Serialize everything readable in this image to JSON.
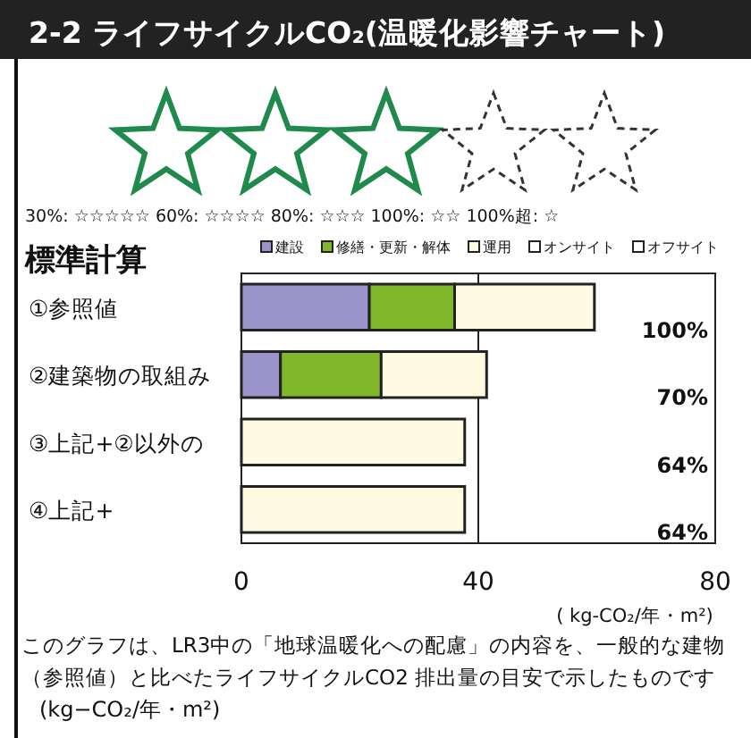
{
  "chart_data": {
    "type": "bar",
    "orientation": "horizontal",
    "stacked": true,
    "title": "2-2 ライフサイクルCO₂(温暖化影響チャート)",
    "subtitle": "標準計算",
    "categories": [
      "①参照値",
      "②建築物の取組み",
      "③上記+②以外の",
      "④上記+"
    ],
    "series": [
      {
        "name": "建設",
        "color": "#9b93cc",
        "values": [
          21.6,
          6.6,
          null,
          null
        ]
      },
      {
        "name": "修繕・更新・解体",
        "color": "#80b82a",
        "values": [
          14.4,
          17.0,
          null,
          null
        ]
      },
      {
        "name": "運用",
        "color": "#fffbe3",
        "values": [
          23.6,
          17.8,
          37.7,
          37.7
        ]
      },
      {
        "name": "オンサイト",
        "color": "#ffffff",
        "values": [
          null,
          null,
          null,
          null
        ]
      },
      {
        "name": "オフサイト",
        "color": "#ffffff",
        "values": [
          null,
          null,
          null,
          null
        ]
      }
    ],
    "xlim": [
      0,
      80
    ],
    "xticks": [
      0,
      40,
      80
    ],
    "grid": "x",
    "legend": "top",
    "xlabel": "( kg-CO₂/年・m²)",
    "annotations": [
      "30%: ☆☆☆☆☆  60%: ☆☆☆☆  80%: ☆☆☆  100%: ☆☆  100%超: ☆",
      "このグラフは、LR3中の「地球温暖化への配慮」の内容を、一般的な建物（参照値）と比べたライフサイクルCO2 排出量の目安で示したものです",
      "(kg−CO₂/年・m²)",
      "100%",
      "70%",
      "64%",
      "64%"
    ]
  }
}
